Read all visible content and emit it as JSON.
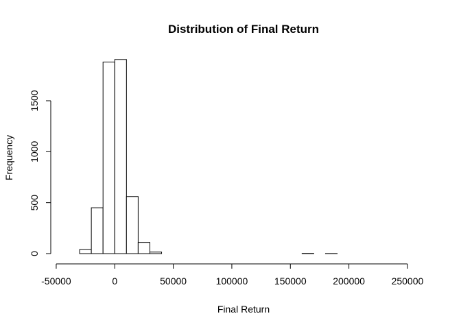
{
  "chart_data": {
    "type": "bar",
    "title": "Distribution of Final Return",
    "xlabel": "Final Return",
    "ylabel": "Frequency",
    "bin_width": 10000,
    "bins": [
      {
        "x0": -40000,
        "x1": -30000,
        "count": 0
      },
      {
        "x0": -30000,
        "x1": -20000,
        "count": 40
      },
      {
        "x0": -20000,
        "x1": -10000,
        "count": 450
      },
      {
        "x0": -10000,
        "x1": 0,
        "count": 1880
      },
      {
        "x0": 0,
        "x1": 10000,
        "count": 1905
      },
      {
        "x0": 10000,
        "x1": 20000,
        "count": 560
      },
      {
        "x0": 20000,
        "x1": 30000,
        "count": 110
      },
      {
        "x0": 30000,
        "x1": 40000,
        "count": 15
      },
      {
        "x0": 40000,
        "x1": 50000,
        "count": 0
      },
      {
        "x0": 50000,
        "x1": 60000,
        "count": 0
      },
      {
        "x0": 60000,
        "x1": 70000,
        "count": 0
      },
      {
        "x0": 70000,
        "x1": 80000,
        "count": 0
      },
      {
        "x0": 80000,
        "x1": 90000,
        "count": 0
      },
      {
        "x0": 90000,
        "x1": 100000,
        "count": 0
      },
      {
        "x0": 100000,
        "x1": 110000,
        "count": 0
      },
      {
        "x0": 110000,
        "x1": 120000,
        "count": 0
      },
      {
        "x0": 120000,
        "x1": 130000,
        "count": 0
      },
      {
        "x0": 130000,
        "x1": 140000,
        "count": 0
      },
      {
        "x0": 140000,
        "x1": 150000,
        "count": 0
      },
      {
        "x0": 150000,
        "x1": 160000,
        "count": 0
      },
      {
        "x0": 160000,
        "x1": 170000,
        "count": 2
      },
      {
        "x0": 170000,
        "x1": 180000,
        "count": 0
      },
      {
        "x0": 180000,
        "x1": 190000,
        "count": 1
      },
      {
        "x0": 190000,
        "x1": 200000,
        "count": 0
      },
      {
        "x0": 200000,
        "x1": 210000,
        "count": 0
      },
      {
        "x0": 210000,
        "x1": 220000,
        "count": 0
      },
      {
        "x0": 220000,
        "x1": 230000,
        "count": 0
      },
      {
        "x0": 230000,
        "x1": 240000,
        "count": 0
      },
      {
        "x0": 240000,
        "x1": 250000,
        "count": 0
      },
      {
        "x0": 250000,
        "x1": 260000,
        "count": 0
      }
    ],
    "xlim": [
      -40000,
      260000
    ],
    "ylim": [
      0,
      1905
    ],
    "x_ticks": [
      -50000,
      0,
      50000,
      100000,
      150000,
      200000,
      250000
    ],
    "x_tick_labels": [
      "-50000",
      "0",
      "50000",
      "100000",
      "150000",
      "200000",
      "250000"
    ],
    "y_ticks": [
      0,
      500,
      1000,
      1500
    ],
    "y_tick_labels": [
      "0",
      "500",
      "1000",
      "1500"
    ],
    "grid": false,
    "legend": "none",
    "colors": {
      "bar_fill": "#ffffff",
      "bar_stroke": "#000000"
    }
  }
}
